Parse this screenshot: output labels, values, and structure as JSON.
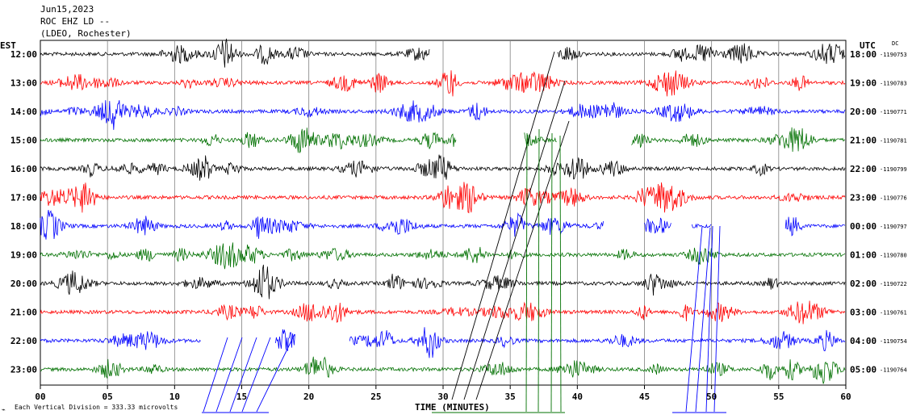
{
  "header": {
    "date": "Jun15,2023",
    "station": "ROC EHZ LD --",
    "network": "(LDEO, Rochester)"
  },
  "left_zone": "EST",
  "right_zone": "UTC",
  "dc_label": "DC",
  "footer": {
    "xlabel": "TIME (MINUTES)",
    "scale_note": "Each Vertical Division =  333.33 microvolts",
    "scale_mark": "⌁"
  },
  "chart_data": {
    "type": "line",
    "title": "",
    "xlabel": "TIME (MINUTES)",
    "xlim": [
      0,
      60
    ],
    "x_ticks": [
      "00",
      "05",
      "10",
      "15",
      "20",
      "25",
      "30",
      "35",
      "40",
      "45",
      "50",
      "55",
      "60"
    ],
    "grid": true,
    "series_colors": [
      "#000000",
      "#ff0000",
      "#0000ff",
      "#007000"
    ],
    "rows": [
      {
        "local": "12:00",
        "utc": "18:00",
        "dc": "-1190753",
        "color": "#000000",
        "gaps": [
          [
            29,
            38.5
          ]
        ]
      },
      {
        "local": "13:00",
        "utc": "19:00",
        "dc": "-1190783",
        "color": "#ff0000",
        "gaps": []
      },
      {
        "local": "14:00",
        "utc": "20:00",
        "dc": "-1190771",
        "color": "#0000ff",
        "gaps": []
      },
      {
        "local": "15:00",
        "utc": "21:00",
        "dc": "-1190781",
        "color": "#007000",
        "gaps": [
          [
            31,
            36
          ],
          [
            38.5,
            44
          ]
        ]
      },
      {
        "local": "16:00",
        "utc": "22:00",
        "dc": "-1190799",
        "color": "#000000",
        "gaps": []
      },
      {
        "local": "17:00",
        "utc": "23:00",
        "dc": "-1190776",
        "color": "#ff0000",
        "gaps": []
      },
      {
        "local": "18:00",
        "utc": "00:00",
        "dc": "-1190797",
        "color": "#0000ff",
        "gaps": [
          [
            42,
            45
          ],
          [
            47,
            48.5
          ],
          [
            50,
            55.5
          ]
        ]
      },
      {
        "local": "19:00",
        "utc": "01:00",
        "dc": "-1190780",
        "color": "#007000",
        "gaps": []
      },
      {
        "local": "20:00",
        "utc": "02:00",
        "dc": "-1190722",
        "color": "#000000",
        "gaps": []
      },
      {
        "local": "21:00",
        "utc": "03:00",
        "dc": "-1190761",
        "color": "#ff0000",
        "gaps": []
      },
      {
        "local": "22:00",
        "utc": "04:00",
        "dc": "-1190754",
        "color": "#0000ff",
        "gaps": [
          [
            12,
            17.5
          ],
          [
            19,
            23
          ]
        ]
      },
      {
        "local": "23:00",
        "utc": "05:00",
        "dc": "-1190764",
        "color": "#007000",
        "gaps": []
      }
    ]
  }
}
